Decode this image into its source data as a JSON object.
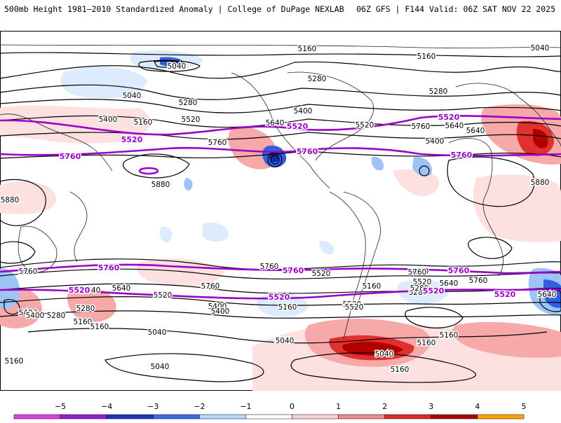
{
  "header": {
    "left_title": "500mb Height 1981–2010 Standardized Anomaly | College of DuPage NEXLAB",
    "right_title": "06Z GFS | F144 Valid: 06Z SAT NOV 22 2025"
  },
  "contours": {
    "black_labels": [
      "5040",
      "5160",
      "5280",
      "5400",
      "5520",
      "5640",
      "5760",
      "5880"
    ],
    "highlight_labels": [
      "5520",
      "5760"
    ],
    "placed": [
      {
        "text": "5160"
      },
      {
        "text": "5040"
      },
      {
        "text": "5160"
      },
      {
        "text": "5040"
      },
      {
        "text": "5280"
      },
      {
        "text": "5040"
      },
      {
        "text": "5280"
      },
      {
        "text": "5160"
      },
      {
        "text": "5400"
      },
      {
        "text": "5520"
      },
      {
        "text": "5400"
      },
      {
        "text": "5640"
      },
      {
        "text": "5520"
      },
      {
        "text": "5640"
      },
      {
        "text": "5760"
      },
      {
        "text": "5760"
      },
      {
        "text": "5880"
      },
      {
        "text": "5880"
      },
      {
        "text": "5880"
      },
      {
        "text": "5280"
      },
      {
        "text": "5400"
      },
      {
        "text": "5160"
      },
      {
        "text": "5520"
      },
      {
        "text": "5640"
      },
      {
        "text": "5760"
      },
      {
        "text": "5760"
      },
      {
        "text": "5520"
      },
      {
        "text": "5640"
      },
      {
        "text": "5280"
      },
      {
        "text": "5400"
      },
      {
        "text": "5160"
      },
      {
        "text": "5040"
      },
      {
        "text": "5040"
      },
      {
        "text": "5760"
      },
      {
        "text": "5640"
      },
      {
        "text": "5280"
      },
      {
        "text": "5520"
      },
      {
        "text": "5400"
      },
      {
        "text": "5520"
      },
      {
        "text": "5160"
      },
      {
        "text": "5640"
      },
      {
        "text": "5400"
      },
      {
        "text": "5280"
      },
      {
        "text": "5160"
      },
      {
        "text": "5040"
      },
      {
        "text": "5760"
      },
      {
        "text": "5160"
      },
      {
        "text": "5040"
      },
      {
        "text": "5520"
      },
      {
        "text": "5640"
      },
      {
        "text": "5520"
      },
      {
        "text": "5760"
      },
      {
        "text": "5160"
      },
      {
        "text": "5160"
      },
      {
        "text": "5400"
      },
      {
        "text": "5280"
      },
      {
        "text": "5640"
      },
      {
        "text": "5160"
      },
      {
        "text": "5040"
      }
    ],
    "magenta": [
      {
        "text": "5520"
      },
      {
        "text": "5520"
      },
      {
        "text": "5520"
      },
      {
        "text": "5520"
      },
      {
        "text": "5760"
      },
      {
        "text": "5760"
      },
      {
        "text": "5760"
      },
      {
        "text": "5760"
      },
      {
        "text": "5760"
      },
      {
        "text": "5760"
      },
      {
        "text": "5520"
      },
      {
        "text": "5520"
      },
      {
        "text": "5520"
      }
    ]
  },
  "colorbar": {
    "ticks": [
      "−5",
      "−4",
      "−3",
      "−2",
      "−1",
      "0",
      "1",
      "2",
      "3",
      "4",
      "5"
    ],
    "colors": [
      "#e040e0",
      "#9020d0",
      "#2030c0",
      "#3a6ee8",
      "#b8d8ff",
      "#ffffff",
      "#ffd2d2",
      "#f08c8c",
      "#e02828",
      "#b00000",
      "#ffa500"
    ]
  },
  "anomaly_colors": {
    "strong_neg": "#3060e0",
    "mod_neg": "#9ec4f5",
    "weak_neg": "#dcebfd",
    "weak_pos": "#fde0e0",
    "mod_pos": "#f7a9a9",
    "strong_pos": "#e03030",
    "extreme_pos": "#b00000",
    "highlight": "#9a00c8"
  }
}
